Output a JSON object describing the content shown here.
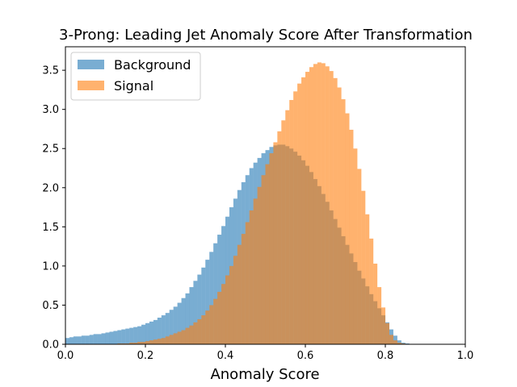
{
  "chart_data": {
    "type": "histogram",
    "title": "3-Prong: Leading Jet Anomaly Score After Transformation",
    "xlabel": "Anomaly Score",
    "ylabel": "",
    "xlim": [
      0.0,
      1.0
    ],
    "ylim": [
      0.0,
      3.8
    ],
    "xticks": [
      "0.0",
      "0.2",
      "0.4",
      "0.6",
      "0.8",
      "1.0"
    ],
    "yticks": [
      "0.0",
      "0.5",
      "1.0",
      "1.5",
      "2.0",
      "2.5",
      "3.0",
      "3.5"
    ],
    "grid": false,
    "legend_position": "upper-left",
    "colors": {
      "Background": "#1f77b4",
      "Signal": "#ff7f0e"
    },
    "bin_width": 0.01,
    "bin_start": 0.0,
    "series": [
      {
        "name": "Background",
        "values": [
          0.08,
          0.09,
          0.1,
          0.1,
          0.11,
          0.11,
          0.12,
          0.13,
          0.13,
          0.14,
          0.15,
          0.16,
          0.17,
          0.18,
          0.19,
          0.2,
          0.21,
          0.22,
          0.23,
          0.25,
          0.27,
          0.29,
          0.31,
          0.34,
          0.37,
          0.4,
          0.44,
          0.48,
          0.53,
          0.59,
          0.65,
          0.73,
          0.81,
          0.89,
          0.98,
          1.08,
          1.18,
          1.29,
          1.4,
          1.51,
          1.63,
          1.75,
          1.86,
          1.97,
          2.07,
          2.16,
          2.25,
          2.32,
          2.38,
          2.44,
          2.48,
          2.52,
          2.54,
          2.55,
          2.55,
          2.53,
          2.5,
          2.46,
          2.41,
          2.35,
          2.28,
          2.2,
          2.11,
          2.02,
          1.92,
          1.82,
          1.71,
          1.6,
          1.49,
          1.38,
          1.27,
          1.16,
          1.05,
          0.94,
          0.84,
          0.74,
          0.64,
          0.55,
          0.46,
          0.37,
          0.28,
          0.19,
          0.11,
          0.05,
          0.02,
          0.01
        ]
      },
      {
        "name": "Signal",
        "values": [
          0.0,
          0.0,
          0.0,
          0.0,
          0.0,
          0.0,
          0.0,
          0.0,
          0.0,
          0.0,
          0.0,
          0.0,
          0.0,
          0.01,
          0.01,
          0.01,
          0.02,
          0.02,
          0.03,
          0.03,
          0.04,
          0.05,
          0.06,
          0.07,
          0.08,
          0.1,
          0.12,
          0.14,
          0.16,
          0.18,
          0.21,
          0.24,
          0.28,
          0.32,
          0.37,
          0.43,
          0.5,
          0.58,
          0.67,
          0.77,
          0.88,
          1.0,
          1.13,
          1.27,
          1.41,
          1.56,
          1.71,
          1.86,
          2.01,
          2.16,
          2.3,
          2.44,
          2.58,
          2.72,
          2.86,
          2.99,
          3.12,
          3.23,
          3.33,
          3.41,
          3.48,
          3.54,
          3.58,
          3.6,
          3.59,
          3.55,
          3.49,
          3.4,
          3.28,
          3.13,
          2.95,
          2.74,
          2.5,
          2.24,
          1.96,
          1.66,
          1.35,
          1.03,
          0.73,
          0.47,
          0.27,
          0.12,
          0.05,
          0.02,
          0.01,
          0.0
        ]
      }
    ]
  }
}
